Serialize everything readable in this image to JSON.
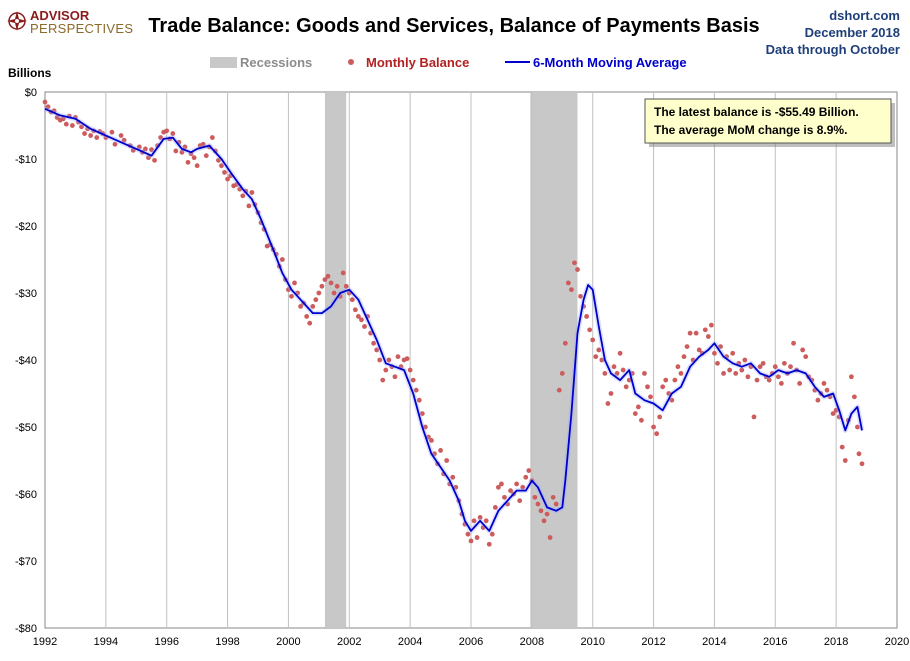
{
  "logo": {
    "line1": "ADVISOR",
    "line2": "PERSPECTIVES",
    "icon": "compass-rose-icon"
  },
  "source": {
    "site": "dshort.com",
    "date": "December 2018",
    "through": "Data through October"
  },
  "chart_data": {
    "type": "scatter-line",
    "title": "Trade Balance: Goods and Services, Balance of Payments Basis",
    "ylabel": "Billions",
    "xlim": [
      1992,
      2020
    ],
    "ylim": [
      -80,
      0
    ],
    "x_ticks": [
      "1992",
      "1994",
      "1996",
      "1998",
      "2000",
      "2002",
      "2004",
      "2006",
      "2008",
      "2010",
      "2012",
      "2014",
      "2016",
      "2018",
      "2020"
    ],
    "y_ticks": [
      "$0",
      "-$10",
      "-$20",
      "-$30",
      "-$40",
      "-$50",
      "-$60",
      "-$70",
      "-$80"
    ],
    "grid": "vertical",
    "legend": {
      "placement": "top-center",
      "items": [
        {
          "label": "Recessions",
          "color": "#c8c8c8"
        },
        {
          "label": "Monthly Balance",
          "color": "#b22222"
        },
        {
          "label": "6-Month Moving Average",
          "color": "#0000cc"
        }
      ]
    },
    "recessions": [
      [
        2001.2,
        2001.9
      ],
      [
        2007.95,
        2009.5
      ]
    ],
    "annotation": {
      "line1": "The latest balance is -$55.49  Billion.",
      "line2": "The average MoM change is 8.9%."
    },
    "colors": {
      "dots": "#cd5c5c",
      "line": "#0000cc",
      "box": "#ffffcc"
    },
    "moving_average": [
      [
        1992.0,
        -2.5
      ],
      [
        1992.5,
        -3.5
      ],
      [
        1993.0,
        -4.0
      ],
      [
        1993.5,
        -5.5
      ],
      [
        1994.0,
        -6.5
      ],
      [
        1994.5,
        -7.5
      ],
      [
        1995.0,
        -8.5
      ],
      [
        1995.5,
        -9.5
      ],
      [
        1995.9,
        -7.0
      ],
      [
        1996.2,
        -6.8
      ],
      [
        1996.5,
        -8.5
      ],
      [
        1996.8,
        -9.0
      ],
      [
        1997.0,
        -8.5
      ],
      [
        1997.4,
        -8.0
      ],
      [
        1997.8,
        -10.0
      ],
      [
        1998.1,
        -12.0
      ],
      [
        1998.5,
        -14.5
      ],
      [
        1998.8,
        -16.0
      ],
      [
        1999.1,
        -19.0
      ],
      [
        1999.5,
        -23.5
      ],
      [
        1999.8,
        -27.0
      ],
      [
        2000.1,
        -29.5
      ],
      [
        2000.4,
        -31.0
      ],
      [
        2000.8,
        -33.0
      ],
      [
        2001.1,
        -33.0
      ],
      [
        2001.4,
        -32.0
      ],
      [
        2001.7,
        -30.0
      ],
      [
        2002.0,
        -29.5
      ],
      [
        2002.3,
        -31.0
      ],
      [
        2002.6,
        -34.0
      ],
      [
        2002.9,
        -37.0
      ],
      [
        2003.2,
        -40.5
      ],
      [
        2003.5,
        -41.0
      ],
      [
        2003.8,
        -41.5
      ],
      [
        2004.1,
        -45.0
      ],
      [
        2004.4,
        -50.0
      ],
      [
        2004.7,
        -54.0
      ],
      [
        2005.0,
        -56.0
      ],
      [
        2005.3,
        -58.0
      ],
      [
        2005.6,
        -61.0
      ],
      [
        2005.8,
        -64.0
      ],
      [
        2006.0,
        -65.5
      ],
      [
        2006.3,
        -64.0
      ],
      [
        2006.6,
        -65.5
      ],
      [
        2006.9,
        -62.5
      ],
      [
        2007.2,
        -61.0
      ],
      [
        2007.5,
        -59.5
      ],
      [
        2007.8,
        -59.5
      ],
      [
        2008.0,
        -58.0
      ],
      [
        2008.2,
        -59.0
      ],
      [
        2008.5,
        -62.0
      ],
      [
        2008.8,
        -62.5
      ],
      [
        2009.0,
        -62.0
      ],
      [
        2009.1,
        -58.0
      ],
      [
        2009.3,
        -48.0
      ],
      [
        2009.5,
        -36.0
      ],
      [
        2009.7,
        -31.0
      ],
      [
        2009.85,
        -28.8
      ],
      [
        2010.0,
        -29.5
      ],
      [
        2010.2,
        -35.0
      ],
      [
        2010.4,
        -40.0
      ],
      [
        2010.6,
        -42.0
      ],
      [
        2010.9,
        -43.0
      ],
      [
        2011.2,
        -41.5
      ],
      [
        2011.4,
        -45.0
      ],
      [
        2011.7,
        -46.0
      ],
      [
        2012.0,
        -46.5
      ],
      [
        2012.3,
        -47.5
      ],
      [
        2012.6,
        -45.0
      ],
      [
        2012.9,
        -44.0
      ],
      [
        2013.2,
        -41.0
      ],
      [
        2013.5,
        -39.5
      ],
      [
        2013.8,
        -38.5
      ],
      [
        2014.0,
        -37.5
      ],
      [
        2014.3,
        -39.5
      ],
      [
        2014.6,
        -40.5
      ],
      [
        2014.9,
        -41.0
      ],
      [
        2015.2,
        -40.5
      ],
      [
        2015.5,
        -42.0
      ],
      [
        2015.8,
        -42.5
      ],
      [
        2016.1,
        -41.5
      ],
      [
        2016.4,
        -42.0
      ],
      [
        2016.7,
        -41.5
      ],
      [
        2017.0,
        -42.0
      ],
      [
        2017.3,
        -44.0
      ],
      [
        2017.6,
        -45.5
      ],
      [
        2017.9,
        -45.0
      ],
      [
        2018.1,
        -47.5
      ],
      [
        2018.3,
        -50.5
      ],
      [
        2018.5,
        -48.0
      ],
      [
        2018.7,
        -47.0
      ],
      [
        2018.85,
        -50.5
      ]
    ],
    "monthly_balance": [
      [
        1992.0,
        -1.5
      ],
      [
        1992.1,
        -2.2
      ],
      [
        1992.2,
        -3.0
      ],
      [
        1992.3,
        -2.8
      ],
      [
        1992.4,
        -3.8
      ],
      [
        1992.5,
        -4.2
      ],
      [
        1992.6,
        -4.0
      ],
      [
        1992.7,
        -4.8
      ],
      [
        1992.8,
        -3.6
      ],
      [
        1992.9,
        -5.0
      ],
      [
        1993.0,
        -3.8
      ],
      [
        1993.1,
        -4.5
      ],
      [
        1993.2,
        -5.2
      ],
      [
        1993.3,
        -6.2
      ],
      [
        1993.4,
        -5.5
      ],
      [
        1993.5,
        -6.5
      ],
      [
        1993.6,
        -5.8
      ],
      [
        1993.7,
        -6.8
      ],
      [
        1993.8,
        -5.9
      ],
      [
        1993.9,
        -6.2
      ],
      [
        1994.0,
        -6.8
      ],
      [
        1994.2,
        -6.0
      ],
      [
        1994.3,
        -7.8
      ],
      [
        1994.5,
        -6.5
      ],
      [
        1994.6,
        -7.2
      ],
      [
        1994.8,
        -8.0
      ],
      [
        1994.9,
        -8.7
      ],
      [
        1995.1,
        -8.2
      ],
      [
        1995.2,
        -9.0
      ],
      [
        1995.3,
        -8.5
      ],
      [
        1995.4,
        -9.8
      ],
      [
        1995.5,
        -8.6
      ],
      [
        1995.6,
        -10.2
      ],
      [
        1995.7,
        -8.0
      ],
      [
        1995.8,
        -6.8
      ],
      [
        1995.9,
        -6.0
      ],
      [
        1996.0,
        -5.8
      ],
      [
        1996.1,
        -7.0
      ],
      [
        1996.2,
        -6.2
      ],
      [
        1996.3,
        -8.8
      ],
      [
        1996.4,
        -7.5
      ],
      [
        1996.5,
        -9.0
      ],
      [
        1996.6,
        -8.2
      ],
      [
        1996.7,
        -10.5
      ],
      [
        1996.8,
        -9.2
      ],
      [
        1996.9,
        -9.8
      ],
      [
        1997.0,
        -11.0
      ],
      [
        1997.1,
        -8.0
      ],
      [
        1997.2,
        -7.8
      ],
      [
        1997.3,
        -9.5
      ],
      [
        1997.4,
        -8.2
      ],
      [
        1997.5,
        -6.8
      ],
      [
        1997.6,
        -8.8
      ],
      [
        1997.7,
        -10.2
      ],
      [
        1997.8,
        -11.0
      ],
      [
        1997.9,
        -12.0
      ],
      [
        1998.0,
        -13.0
      ],
      [
        1998.1,
        -12.5
      ],
      [
        1998.2,
        -14.0
      ],
      [
        1998.3,
        -13.8
      ],
      [
        1998.4,
        -14.5
      ],
      [
        1998.5,
        -15.5
      ],
      [
        1998.6,
        -14.8
      ],
      [
        1998.7,
        -17.0
      ],
      [
        1998.8,
        -15.0
      ],
      [
        1998.9,
        -16.8
      ],
      [
        1999.0,
        -18.0
      ],
      [
        1999.1,
        -19.5
      ],
      [
        1999.2,
        -20.5
      ],
      [
        1999.3,
        -23.0
      ],
      [
        1999.4,
        -22.8
      ],
      [
        1999.5,
        -23.5
      ],
      [
        1999.6,
        -24.2
      ],
      [
        1999.7,
        -26.0
      ],
      [
        1999.8,
        -25.0
      ],
      [
        1999.9,
        -28.0
      ],
      [
        2000.0,
        -29.5
      ],
      [
        2000.1,
        -30.5
      ],
      [
        2000.2,
        -28.5
      ],
      [
        2000.3,
        -30.0
      ],
      [
        2000.4,
        -32.0
      ],
      [
        2000.5,
        -31.5
      ],
      [
        2000.6,
        -33.5
      ],
      [
        2000.7,
        -34.5
      ],
      [
        2000.8,
        -32.0
      ],
      [
        2000.9,
        -31.0
      ],
      [
        2001.0,
        -30.0
      ],
      [
        2001.1,
        -29.0
      ],
      [
        2001.2,
        -28.0
      ],
      [
        2001.3,
        -27.5
      ],
      [
        2001.4,
        -28.5
      ],
      [
        2001.5,
        -30.0
      ],
      [
        2001.6,
        -29.0
      ],
      [
        2001.7,
        -30.5
      ],
      [
        2001.8,
        -27.0
      ],
      [
        2001.9,
        -29.0
      ],
      [
        2002.0,
        -30.0
      ],
      [
        2002.1,
        -31.0
      ],
      [
        2002.2,
        -32.5
      ],
      [
        2002.3,
        -33.5
      ],
      [
        2002.4,
        -34.0
      ],
      [
        2002.5,
        -35.0
      ],
      [
        2002.6,
        -33.5
      ],
      [
        2002.7,
        -36.0
      ],
      [
        2002.8,
        -37.5
      ],
      [
        2002.9,
        -38.5
      ],
      [
        2003.0,
        -40.0
      ],
      [
        2003.1,
        -43.0
      ],
      [
        2003.2,
        -41.5
      ],
      [
        2003.3,
        -40.0
      ],
      [
        2003.4,
        -41.0
      ],
      [
        2003.5,
        -42.5
      ],
      [
        2003.6,
        -39.5
      ],
      [
        2003.7,
        -41.0
      ],
      [
        2003.8,
        -40.0
      ],
      [
        2003.9,
        -39.8
      ],
      [
        2004.0,
        -41.5
      ],
      [
        2004.1,
        -43.0
      ],
      [
        2004.2,
        -44.5
      ],
      [
        2004.3,
        -46.0
      ],
      [
        2004.4,
        -48.0
      ],
      [
        2004.5,
        -50.0
      ],
      [
        2004.6,
        -51.5
      ],
      [
        2004.7,
        -52.0
      ],
      [
        2004.8,
        -54.0
      ],
      [
        2004.9,
        -55.5
      ],
      [
        2005.0,
        -53.5
      ],
      [
        2005.1,
        -57.0
      ],
      [
        2005.2,
        -55.0
      ],
      [
        2005.3,
        -58.5
      ],
      [
        2005.4,
        -57.5
      ],
      [
        2005.5,
        -59.0
      ],
      [
        2005.6,
        -61.0
      ],
      [
        2005.7,
        -63.0
      ],
      [
        2005.8,
        -64.5
      ],
      [
        2005.9,
        -66.0
      ],
      [
        2006.0,
        -67.0
      ],
      [
        2006.1,
        -64.0
      ],
      [
        2006.2,
        -66.5
      ],
      [
        2006.3,
        -63.5
      ],
      [
        2006.4,
        -65.0
      ],
      [
        2006.5,
        -64.0
      ],
      [
        2006.6,
        -67.5
      ],
      [
        2006.7,
        -66.0
      ],
      [
        2006.8,
        -62.0
      ],
      [
        2006.9,
        -59.0
      ],
      [
        2007.0,
        -58.5
      ],
      [
        2007.1,
        -60.5
      ],
      [
        2007.2,
        -61.5
      ],
      [
        2007.3,
        -59.5
      ],
      [
        2007.4,
        -60.0
      ],
      [
        2007.5,
        -58.5
      ],
      [
        2007.6,
        -61.0
      ],
      [
        2007.7,
        -59.0
      ],
      [
        2007.8,
        -57.5
      ],
      [
        2007.9,
        -56.5
      ],
      [
        2008.0,
        -58.0
      ],
      [
        2008.1,
        -60.5
      ],
      [
        2008.2,
        -61.5
      ],
      [
        2008.3,
        -62.5
      ],
      [
        2008.4,
        -64.0
      ],
      [
        2008.5,
        -63.0
      ],
      [
        2008.6,
        -66.5
      ],
      [
        2008.7,
        -60.5
      ],
      [
        2008.8,
        -61.5
      ],
      [
        2008.9,
        -44.5
      ],
      [
        2009.0,
        -42.0
      ],
      [
        2009.1,
        -37.5
      ],
      [
        2009.2,
        -28.5
      ],
      [
        2009.3,
        -29.5
      ],
      [
        2009.4,
        -25.5
      ],
      [
        2009.5,
        -26.5
      ],
      [
        2009.6,
        -30.5
      ],
      [
        2009.7,
        -32.0
      ],
      [
        2009.8,
        -33.5
      ],
      [
        2009.9,
        -35.5
      ],
      [
        2010.0,
        -37.0
      ],
      [
        2010.1,
        -39.5
      ],
      [
        2010.2,
        -38.5
      ],
      [
        2010.3,
        -40.0
      ],
      [
        2010.4,
        -42.0
      ],
      [
        2010.5,
        -46.5
      ],
      [
        2010.6,
        -45.0
      ],
      [
        2010.7,
        -41.0
      ],
      [
        2010.8,
        -42.0
      ],
      [
        2010.9,
        -39.0
      ],
      [
        2011.0,
        -41.5
      ],
      [
        2011.1,
        -44.0
      ],
      [
        2011.2,
        -43.0
      ],
      [
        2011.3,
        -42.0
      ],
      [
        2011.4,
        -48.0
      ],
      [
        2011.5,
        -47.0
      ],
      [
        2011.6,
        -49.0
      ],
      [
        2011.7,
        -42.0
      ],
      [
        2011.8,
        -44.0
      ],
      [
        2011.9,
        -45.5
      ],
      [
        2012.0,
        -50.0
      ],
      [
        2012.1,
        -51.0
      ],
      [
        2012.2,
        -48.5
      ],
      [
        2012.3,
        -44.0
      ],
      [
        2012.4,
        -43.0
      ],
      [
        2012.5,
        -45.0
      ],
      [
        2012.6,
        -46.0
      ],
      [
        2012.7,
        -43.0
      ],
      [
        2012.8,
        -41.0
      ],
      [
        2012.9,
        -42.0
      ],
      [
        2013.0,
        -39.5
      ],
      [
        2013.1,
        -38.0
      ],
      [
        2013.2,
        -36.0
      ],
      [
        2013.3,
        -40.0
      ],
      [
        2013.4,
        -36.0
      ],
      [
        2013.5,
        -38.5
      ],
      [
        2013.6,
        -39.0
      ],
      [
        2013.7,
        -35.5
      ],
      [
        2013.8,
        -36.5
      ],
      [
        2013.9,
        -34.8
      ],
      [
        2014.0,
        -39.0
      ],
      [
        2014.1,
        -40.5
      ],
      [
        2014.2,
        -38.0
      ],
      [
        2014.3,
        -42.0
      ],
      [
        2014.4,
        -39.5
      ],
      [
        2014.5,
        -41.5
      ],
      [
        2014.6,
        -39.0
      ],
      [
        2014.7,
        -42.0
      ],
      [
        2014.8,
        -40.5
      ],
      [
        2014.9,
        -41.5
      ],
      [
        2015.0,
        -40.0
      ],
      [
        2015.1,
        -42.5
      ],
      [
        2015.2,
        -41.0
      ],
      [
        2015.3,
        -48.5
      ],
      [
        2015.4,
        -43.0
      ],
      [
        2015.5,
        -41.0
      ],
      [
        2015.6,
        -40.5
      ],
      [
        2015.7,
        -42.5
      ],
      [
        2015.8,
        -43.0
      ],
      [
        2015.9,
        -42.0
      ],
      [
        2016.0,
        -41.0
      ],
      [
        2016.1,
        -42.5
      ],
      [
        2016.2,
        -43.5
      ],
      [
        2016.3,
        -40.5
      ],
      [
        2016.4,
        -42.0
      ],
      [
        2016.5,
        -41.0
      ],
      [
        2016.6,
        -37.5
      ],
      [
        2016.7,
        -41.5
      ],
      [
        2016.8,
        -43.5
      ],
      [
        2016.9,
        -38.5
      ],
      [
        2017.0,
        -39.5
      ],
      [
        2017.1,
        -42.5
      ],
      [
        2017.2,
        -43.0
      ],
      [
        2017.3,
        -44.5
      ],
      [
        2017.4,
        -46.0
      ],
      [
        2017.5,
        -45.0
      ],
      [
        2017.6,
        -43.5
      ],
      [
        2017.7,
        -44.5
      ],
      [
        2017.8,
        -45.5
      ],
      [
        2017.9,
        -48.0
      ],
      [
        2018.0,
        -47.5
      ],
      [
        2018.1,
        -48.5
      ],
      [
        2018.2,
        -53.0
      ],
      [
        2018.3,
        -55.0
      ],
      [
        2018.4,
        -49.0
      ],
      [
        2018.5,
        -42.5
      ],
      [
        2018.6,
        -45.5
      ],
      [
        2018.7,
        -50.0
      ],
      [
        2018.75,
        -54.0
      ],
      [
        2018.85,
        -55.49
      ]
    ]
  }
}
